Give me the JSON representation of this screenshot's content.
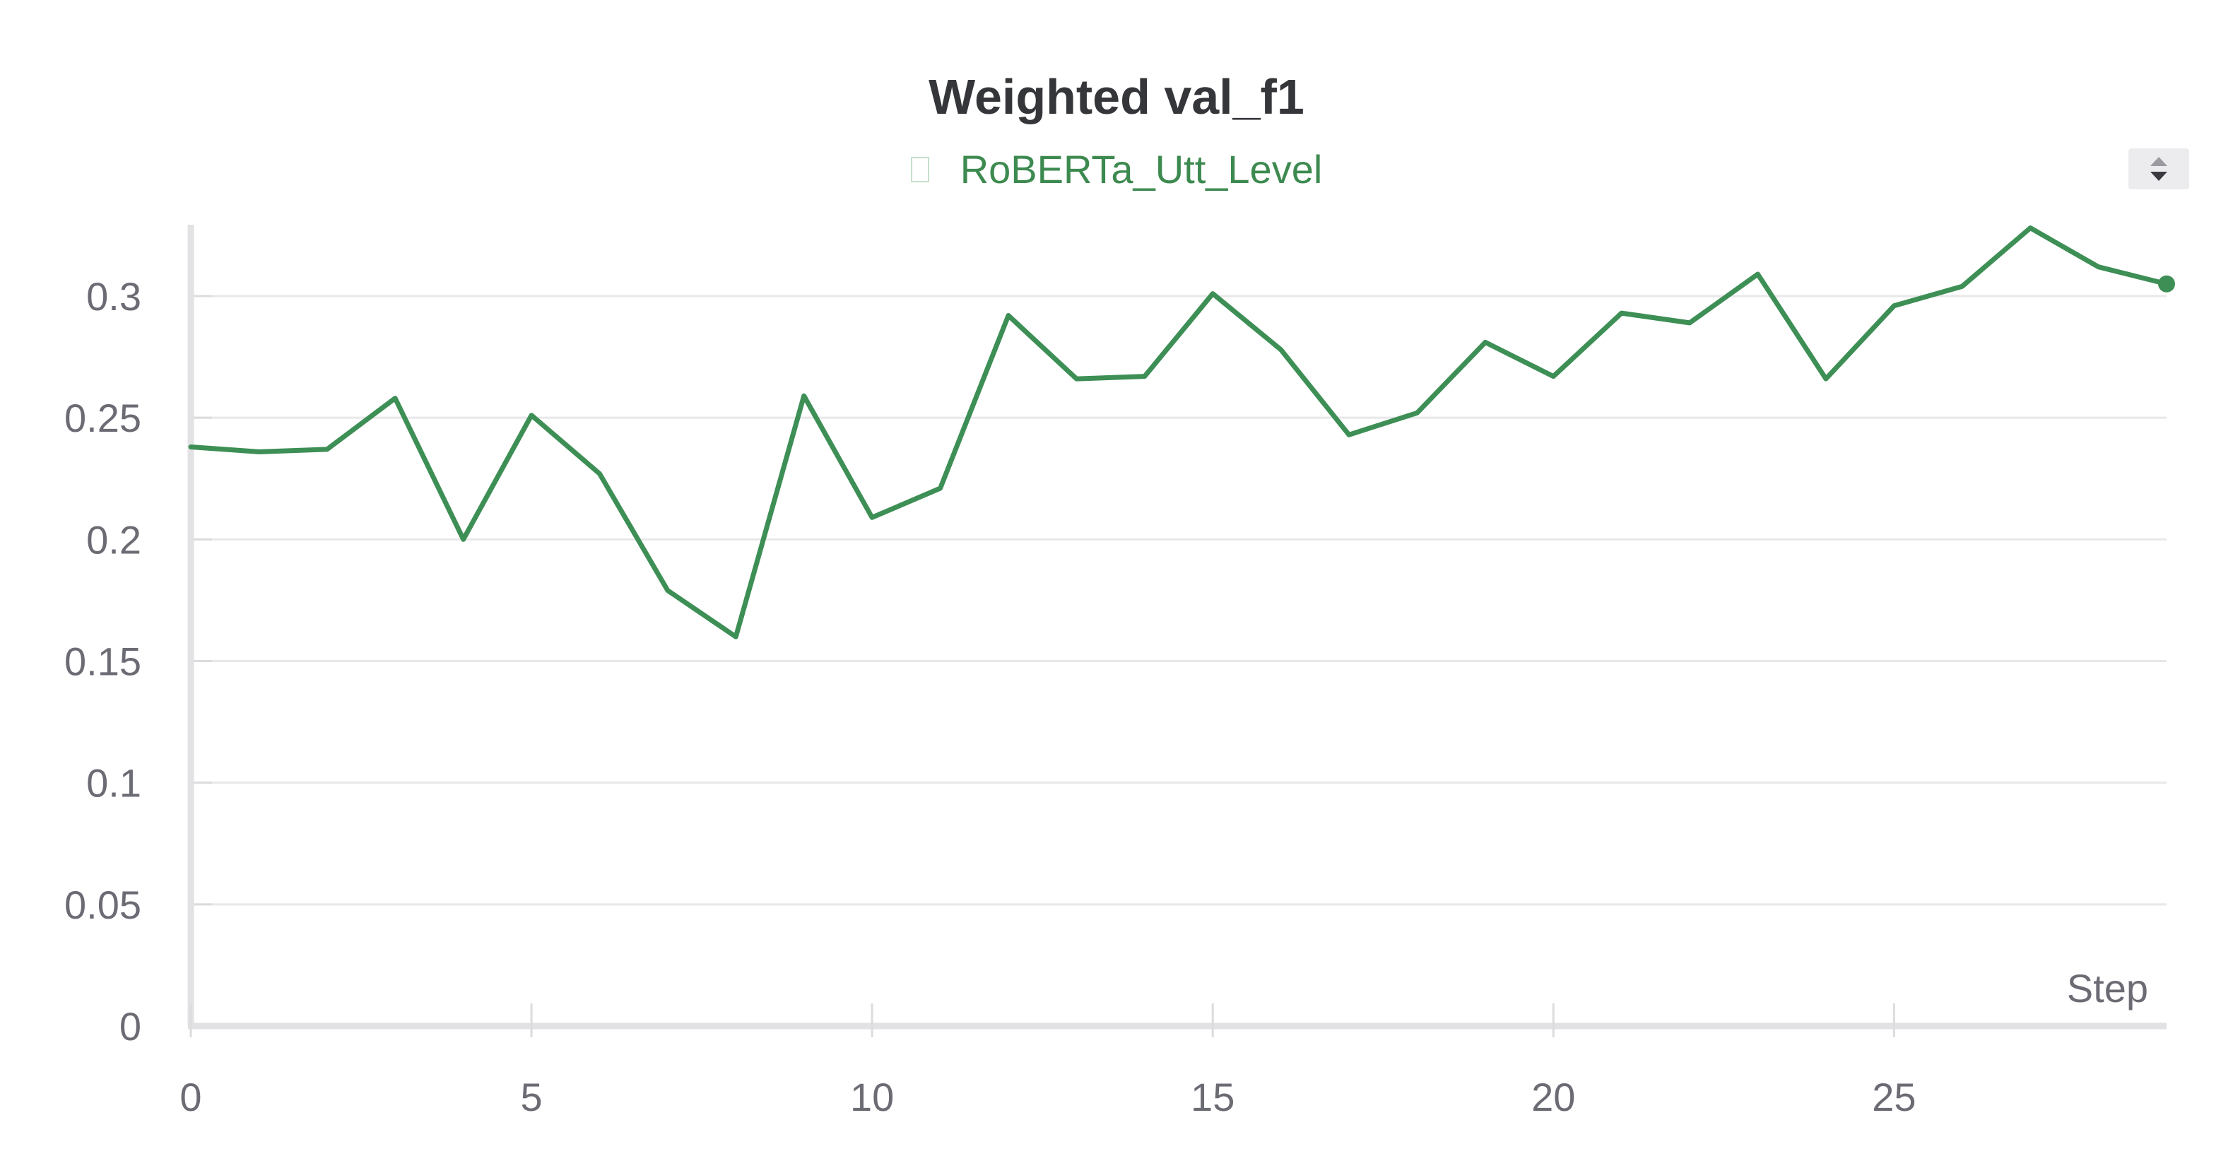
{
  "chart_data": {
    "type": "line",
    "title": "Weighted val_f1",
    "xlabel": "Step",
    "ylabel": "",
    "xlim": [
      0,
      29
    ],
    "ylim": [
      0,
      0.33
    ],
    "x_ticks": [
      0,
      5,
      10,
      15,
      20,
      25
    ],
    "x_tick_labels": [
      "0",
      "5",
      "10",
      "15",
      "20",
      "25"
    ],
    "y_ticks": [
      0,
      0.05,
      0.1,
      0.15,
      0.2,
      0.25,
      0.3
    ],
    "y_tick_labels": [
      "0",
      "0.05",
      "0.1",
      "0.15",
      "0.2",
      "0.25",
      "0.3"
    ],
    "grid": true,
    "legend_position": "top-center",
    "series": [
      {
        "name": "RoBERTa_Utt_Level",
        "color": "#3d8f55",
        "x": [
          0,
          1,
          2,
          3,
          4,
          5,
          6,
          7,
          8,
          9,
          10,
          11,
          12,
          13,
          14,
          15,
          16,
          17,
          18,
          19,
          20,
          21,
          22,
          23,
          24,
          25,
          26,
          27,
          28,
          29
        ],
        "values": [
          0.238,
          0.236,
          0.237,
          0.258,
          0.2,
          0.251,
          0.227,
          0.179,
          0.16,
          0.259,
          0.209,
          0.221,
          0.292,
          0.266,
          0.267,
          0.301,
          0.278,
          0.243,
          0.252,
          0.281,
          0.267,
          0.293,
          0.289,
          0.309,
          0.266,
          0.296,
          0.304,
          0.328,
          0.312,
          0.305
        ]
      }
    ]
  },
  "controls": {
    "scroll_icon": "up-down-arrows-icon",
    "legend_icon": "legend-swatch-icon"
  }
}
